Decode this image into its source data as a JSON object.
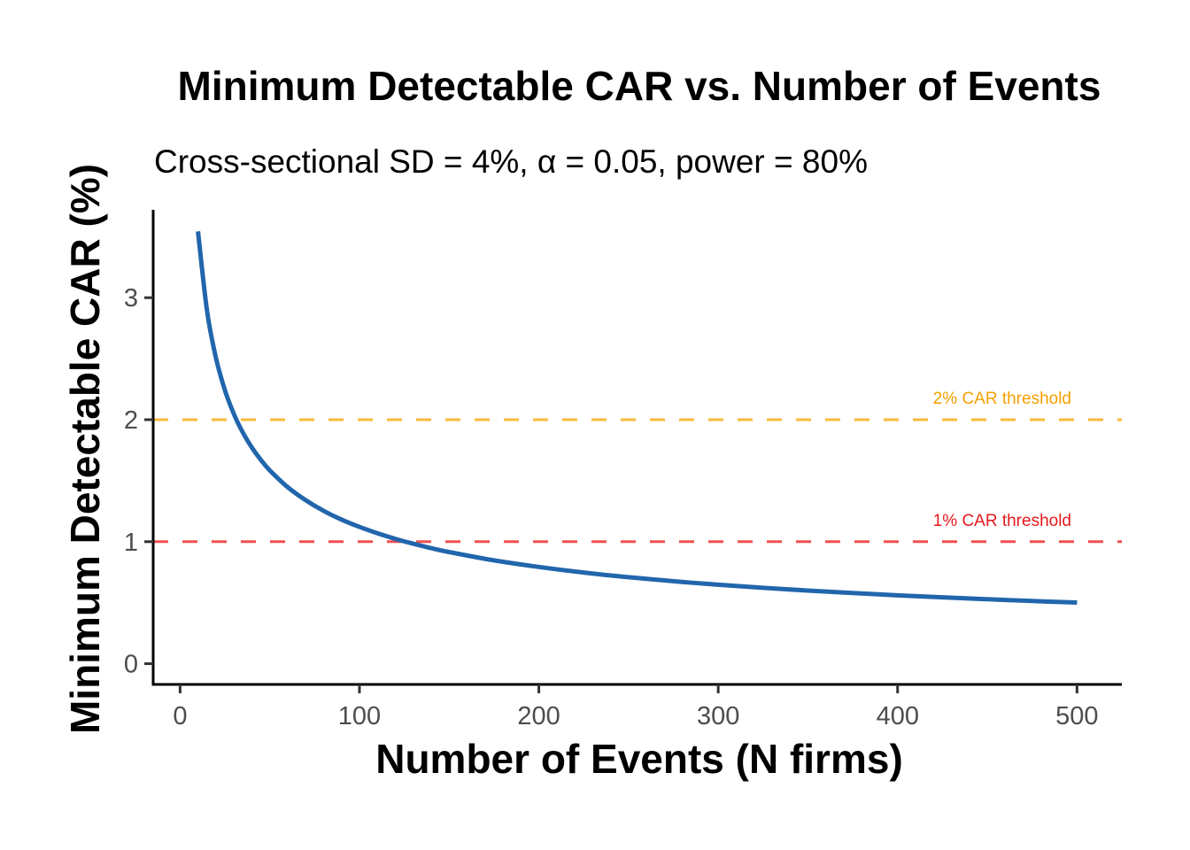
{
  "chart_data": {
    "type": "line",
    "title": "Minimum Detectable CAR vs. Number of Events",
    "subtitle": "Cross-sectional SD = 4%, α = 0.05, power = 80%",
    "xlabel": "Number of Events (N firms)",
    "ylabel": "Minimum Detectable CAR (%)",
    "xlim": [
      -15,
      525
    ],
    "ylim": [
      -0.17,
      3.72
    ],
    "x_ticks": [
      0,
      100,
      200,
      300,
      400,
      500
    ],
    "x_tick_labels": [
      "0",
      "100",
      "200",
      "300",
      "400",
      "500"
    ],
    "y_ticks": [
      0,
      1,
      2,
      3
    ],
    "y_tick_labels": [
      "0",
      "1",
      "2",
      "3"
    ],
    "grid": false,
    "series": [
      {
        "name": "Minimum detectable CAR",
        "color": "#2166ac",
        "x": [
          10,
          15,
          20,
          25,
          30,
          35,
          40,
          45,
          50,
          60,
          70,
          80,
          90,
          100,
          110,
          120,
          130,
          140,
          150,
          175,
          200,
          225,
          250,
          275,
          300,
          325,
          350,
          375,
          400,
          425,
          450,
          475,
          500
        ],
        "y": [
          3.544,
          2.894,
          2.506,
          2.242,
          2.046,
          1.894,
          1.772,
          1.671,
          1.585,
          1.447,
          1.34,
          1.253,
          1.181,
          1.121,
          1.069,
          1.023,
          0.983,
          0.947,
          0.915,
          0.847,
          0.793,
          0.747,
          0.709,
          0.676,
          0.647,
          0.622,
          0.599,
          0.579,
          0.56,
          0.544,
          0.528,
          0.514,
          0.501
        ]
      }
    ],
    "reference_lines": [
      {
        "name": "2% CAR threshold",
        "y": 2,
        "color": "#fbb93a",
        "label_color": "#f5a000",
        "style": "dashed",
        "label": "2% CAR threshold"
      },
      {
        "name": "1% CAR threshold",
        "y": 1,
        "color": "#f05050",
        "label_color": "#e41a1c",
        "style": "dashed",
        "label": "1% CAR threshold"
      }
    ]
  }
}
